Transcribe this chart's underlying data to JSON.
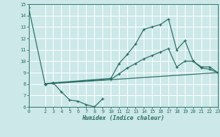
{
  "xlabel": "Humidex (Indice chaleur)",
  "xlim": [
    0,
    23
  ],
  "ylim": [
    6,
    15
  ],
  "yticks": [
    6,
    7,
    8,
    9,
    10,
    11,
    12,
    13,
    14,
    15
  ],
  "xticks": [
    0,
    2,
    3,
    4,
    5,
    6,
    7,
    8,
    9,
    10,
    11,
    12,
    13,
    14,
    15,
    16,
    17,
    18,
    19,
    20,
    21,
    22,
    23
  ],
  "bg_color": "#cce8e8",
  "grid_color": "#ffffff",
  "line_color": "#2a6e65",
  "line1_x": [
    0,
    2,
    3,
    4,
    5,
    6,
    7,
    8,
    9
  ],
  "line1_y": [
    14.7,
    8.0,
    8.1,
    7.3,
    6.6,
    6.5,
    6.2,
    6.0,
    6.7
  ],
  "line2_x": [
    2,
    3,
    10,
    11,
    12,
    13,
    14,
    15,
    16,
    17,
    18,
    19,
    20,
    21,
    22,
    23
  ],
  "line2_y": [
    8.0,
    8.1,
    8.5,
    9.8,
    10.6,
    11.5,
    12.8,
    13.0,
    13.2,
    13.7,
    11.0,
    11.8,
    10.0,
    9.5,
    9.5,
    9.0
  ],
  "line3_x": [
    2,
    23
  ],
  "line3_y": [
    8.0,
    9.0
  ],
  "line4_x": [
    2,
    3,
    10,
    11,
    12,
    13,
    14,
    15,
    16,
    17,
    18,
    19,
    20,
    21,
    22,
    23
  ],
  "line4_y": [
    8.0,
    8.1,
    8.4,
    8.9,
    9.4,
    9.8,
    10.2,
    10.5,
    10.8,
    11.1,
    9.5,
    10.0,
    10.0,
    9.4,
    9.3,
    9.0
  ]
}
